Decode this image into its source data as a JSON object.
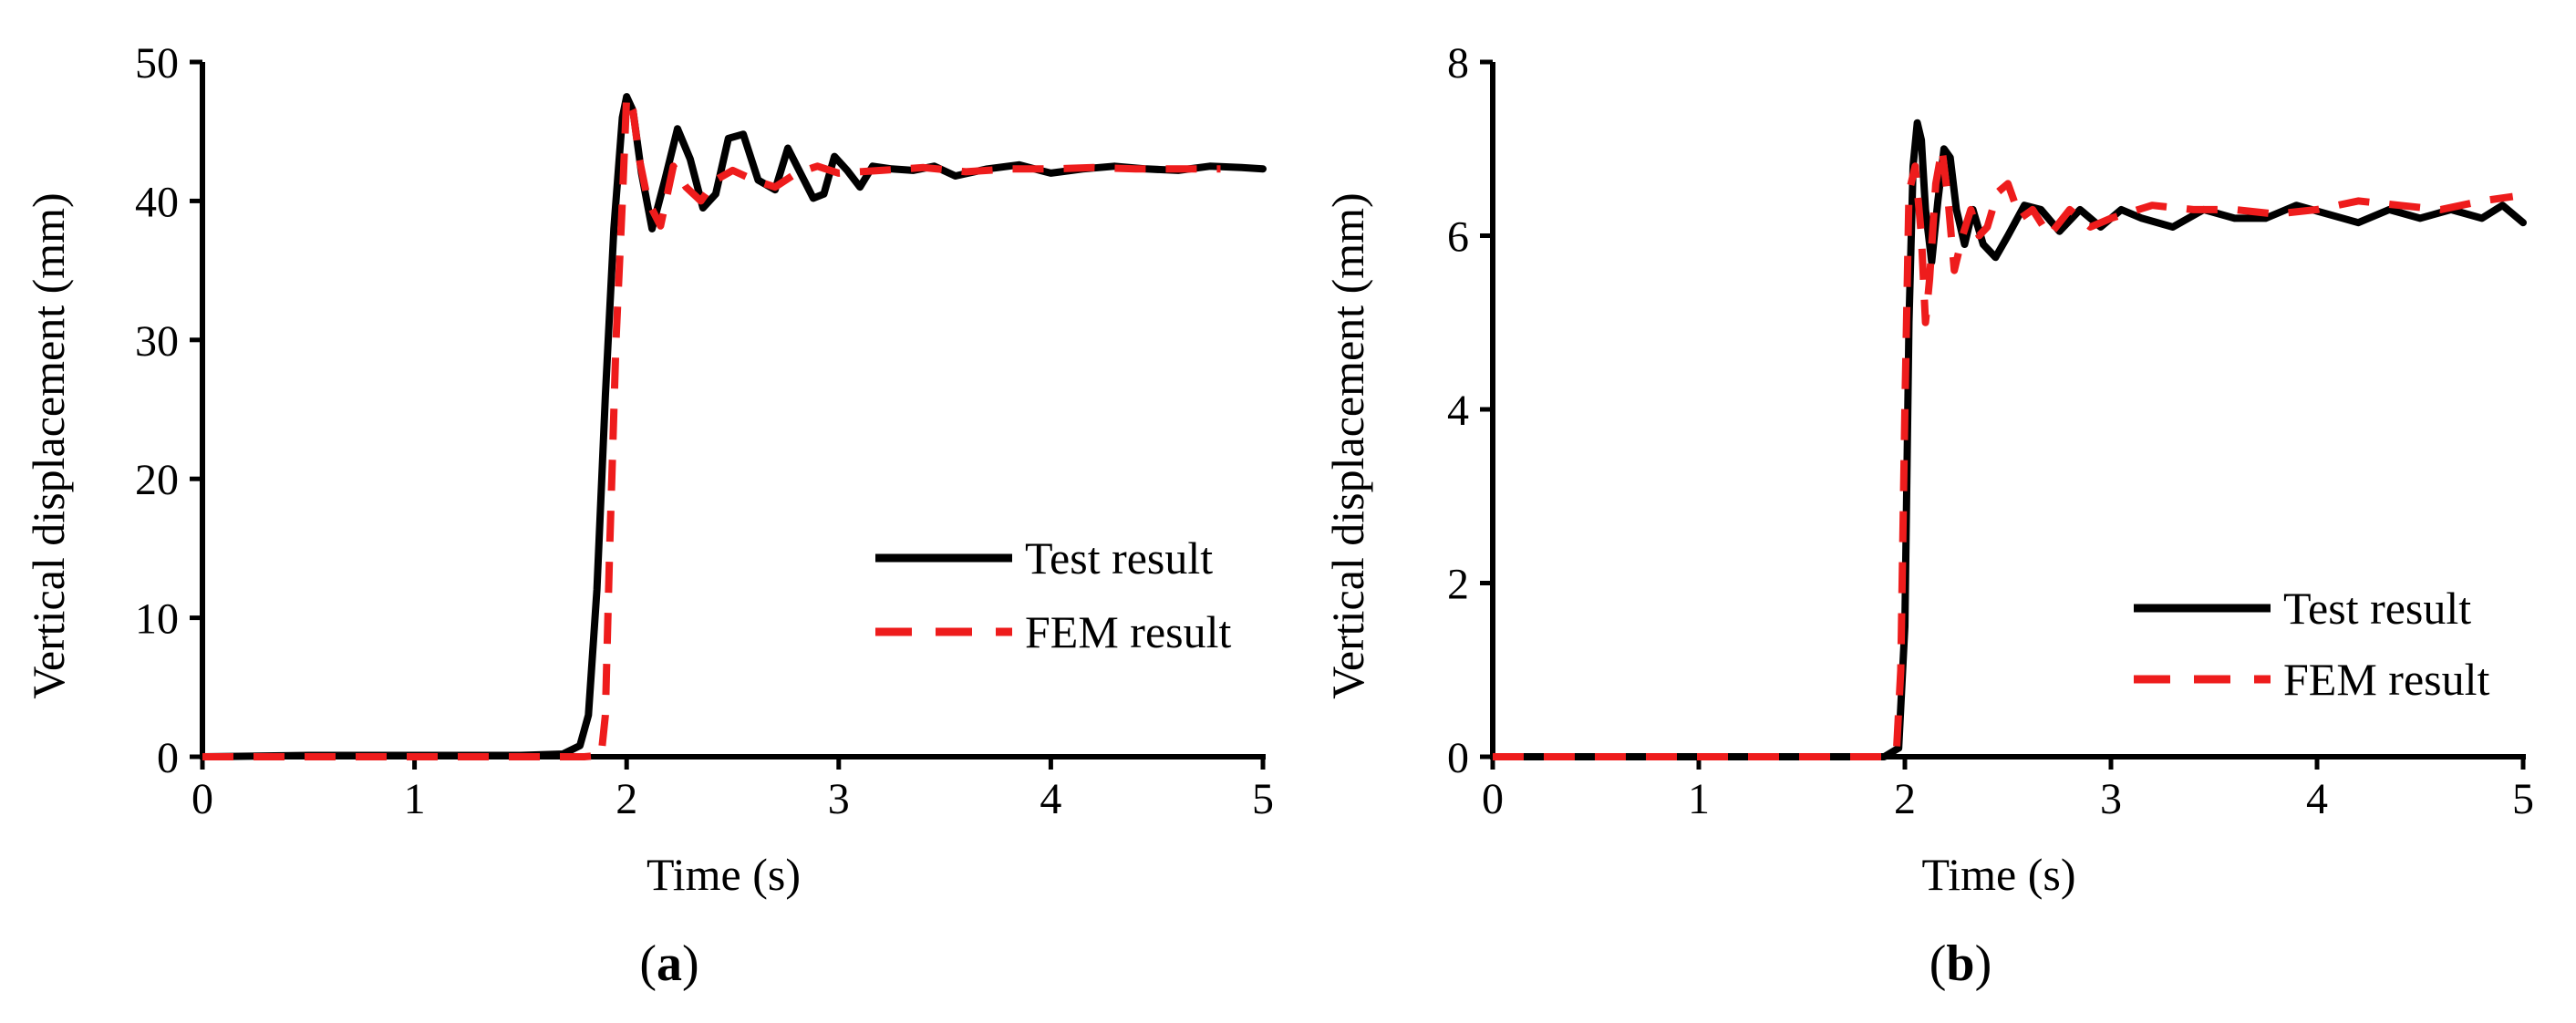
{
  "chart_data": [
    {
      "type": "line",
      "panel_label": "(a)",
      "xlabel": "Time (s)",
      "ylabel": "Vertical displacement (mm)",
      "xlim": [
        0,
        5
      ],
      "ylim": [
        0,
        50
      ],
      "xticks": [
        0,
        1,
        2,
        3,
        4,
        5
      ],
      "yticks": [
        0,
        10,
        20,
        30,
        40,
        50
      ],
      "legend_position": "center-right",
      "grid": false,
      "series": [
        {
          "name": "Test result",
          "color": "#000000",
          "style": "solid",
          "x": [
            0.0,
            0.5,
            1.0,
            1.5,
            1.7,
            1.78,
            1.82,
            1.86,
            1.9,
            1.94,
            1.98,
            2.0,
            2.03,
            2.07,
            2.12,
            2.18,
            2.24,
            2.3,
            2.36,
            2.42,
            2.48,
            2.55,
            2.62,
            2.7,
            2.76,
            2.82,
            2.88,
            2.93,
            2.98,
            3.04,
            3.1,
            3.16,
            3.25,
            3.35,
            3.45,
            3.55,
            3.7,
            3.85,
            4.0,
            4.15,
            4.3,
            4.45,
            4.6,
            4.75,
            4.9,
            5.0
          ],
          "y": [
            0.0,
            0.1,
            0.1,
            0.1,
            0.2,
            0.8,
            3.0,
            12.0,
            26.0,
            38.0,
            46.0,
            47.5,
            46.5,
            42.0,
            38.0,
            41.5,
            45.2,
            43.0,
            39.5,
            40.5,
            44.5,
            44.8,
            41.5,
            40.8,
            43.8,
            42.0,
            40.2,
            40.5,
            43.2,
            42.2,
            41.0,
            42.5,
            42.3,
            42.2,
            42.5,
            41.8,
            42.3,
            42.6,
            42.0,
            42.3,
            42.5,
            42.3,
            42.2,
            42.5,
            42.4,
            42.3
          ]
        },
        {
          "name": "FEM result",
          "color": "#ee1c1c",
          "style": "dashed",
          "x": [
            0.0,
            0.5,
            1.0,
            1.5,
            1.8,
            1.88,
            1.9,
            1.92,
            1.95,
            1.98,
            2.0,
            2.03,
            2.06,
            2.1,
            2.16,
            2.22,
            2.28,
            2.35,
            2.42,
            2.5,
            2.6,
            2.7,
            2.8,
            2.9,
            3.0,
            3.2,
            3.4,
            3.6,
            3.8,
            4.0,
            4.2,
            4.4,
            4.6,
            4.8
          ],
          "y": [
            0.0,
            0.0,
            0.0,
            0.0,
            0.0,
            0.1,
            3.0,
            15.0,
            30.0,
            40.0,
            47.5,
            46.5,
            43.0,
            40.0,
            38.2,
            42.5,
            41.0,
            40.0,
            41.5,
            42.2,
            41.5,
            41.0,
            42.0,
            42.5,
            42.0,
            42.2,
            42.4,
            42.1,
            42.3,
            42.3,
            42.4,
            42.3,
            42.3,
            42.3
          ]
        }
      ]
    },
    {
      "type": "line",
      "panel_label": "(b)",
      "xlabel": "Time (s)",
      "ylabel": "Vertical displacement (mm)",
      "xlim": [
        0,
        5
      ],
      "ylim": [
        0,
        8
      ],
      "xticks": [
        0,
        1,
        2,
        3,
        4,
        5
      ],
      "yticks": [
        0,
        2,
        4,
        6,
        8
      ],
      "legend_position": "center-right",
      "grid": false,
      "series": [
        {
          "name": "Test result",
          "color": "#000000",
          "style": "solid",
          "x": [
            0.0,
            0.5,
            1.0,
            1.5,
            1.9,
            1.97,
            2.0,
            2.02,
            2.04,
            2.06,
            2.08,
            2.1,
            2.13,
            2.16,
            2.19,
            2.22,
            2.25,
            2.29,
            2.33,
            2.38,
            2.44,
            2.5,
            2.58,
            2.66,
            2.75,
            2.85,
            2.95,
            3.05,
            3.15,
            3.3,
            3.45,
            3.6,
            3.75,
            3.9,
            4.05,
            4.2,
            4.35,
            4.5,
            4.65,
            4.8,
            4.9,
            5.0
          ],
          "y": [
            0.0,
            0.0,
            0.0,
            0.0,
            0.0,
            0.1,
            1.5,
            5.0,
            6.8,
            7.3,
            7.1,
            6.3,
            5.7,
            6.4,
            7.0,
            6.9,
            6.3,
            5.9,
            6.3,
            5.9,
            5.75,
            6.0,
            6.35,
            6.3,
            6.05,
            6.3,
            6.1,
            6.3,
            6.2,
            6.1,
            6.3,
            6.2,
            6.2,
            6.35,
            6.25,
            6.15,
            6.3,
            6.2,
            6.3,
            6.2,
            6.35,
            6.15
          ]
        },
        {
          "name": "FEM result",
          "color": "#ee1c1c",
          "style": "dashed",
          "x": [
            0.0,
            0.5,
            1.0,
            1.5,
            1.9,
            1.96,
            1.98,
            2.0,
            2.02,
            2.05,
            2.08,
            2.1,
            2.12,
            2.15,
            2.18,
            2.21,
            2.24,
            2.28,
            2.32,
            2.36,
            2.4,
            2.45,
            2.5,
            2.56,
            2.62,
            2.7,
            2.8,
            2.9,
            3.0,
            3.2,
            3.4,
            3.6,
            3.8,
            4.0,
            4.2,
            4.4,
            4.6,
            4.8,
            4.95
          ],
          "y": [
            0.0,
            0.0,
            0.0,
            0.0,
            0.0,
            0.1,
            1.0,
            4.0,
            6.5,
            6.8,
            6.0,
            5.0,
            5.5,
            6.6,
            7.0,
            6.4,
            5.6,
            6.0,
            6.3,
            6.0,
            6.1,
            6.5,
            6.6,
            6.2,
            6.3,
            6.0,
            6.3,
            6.1,
            6.2,
            6.35,
            6.3,
            6.3,
            6.25,
            6.3,
            6.4,
            6.35,
            6.3,
            6.4,
            6.45
          ]
        }
      ]
    }
  ]
}
